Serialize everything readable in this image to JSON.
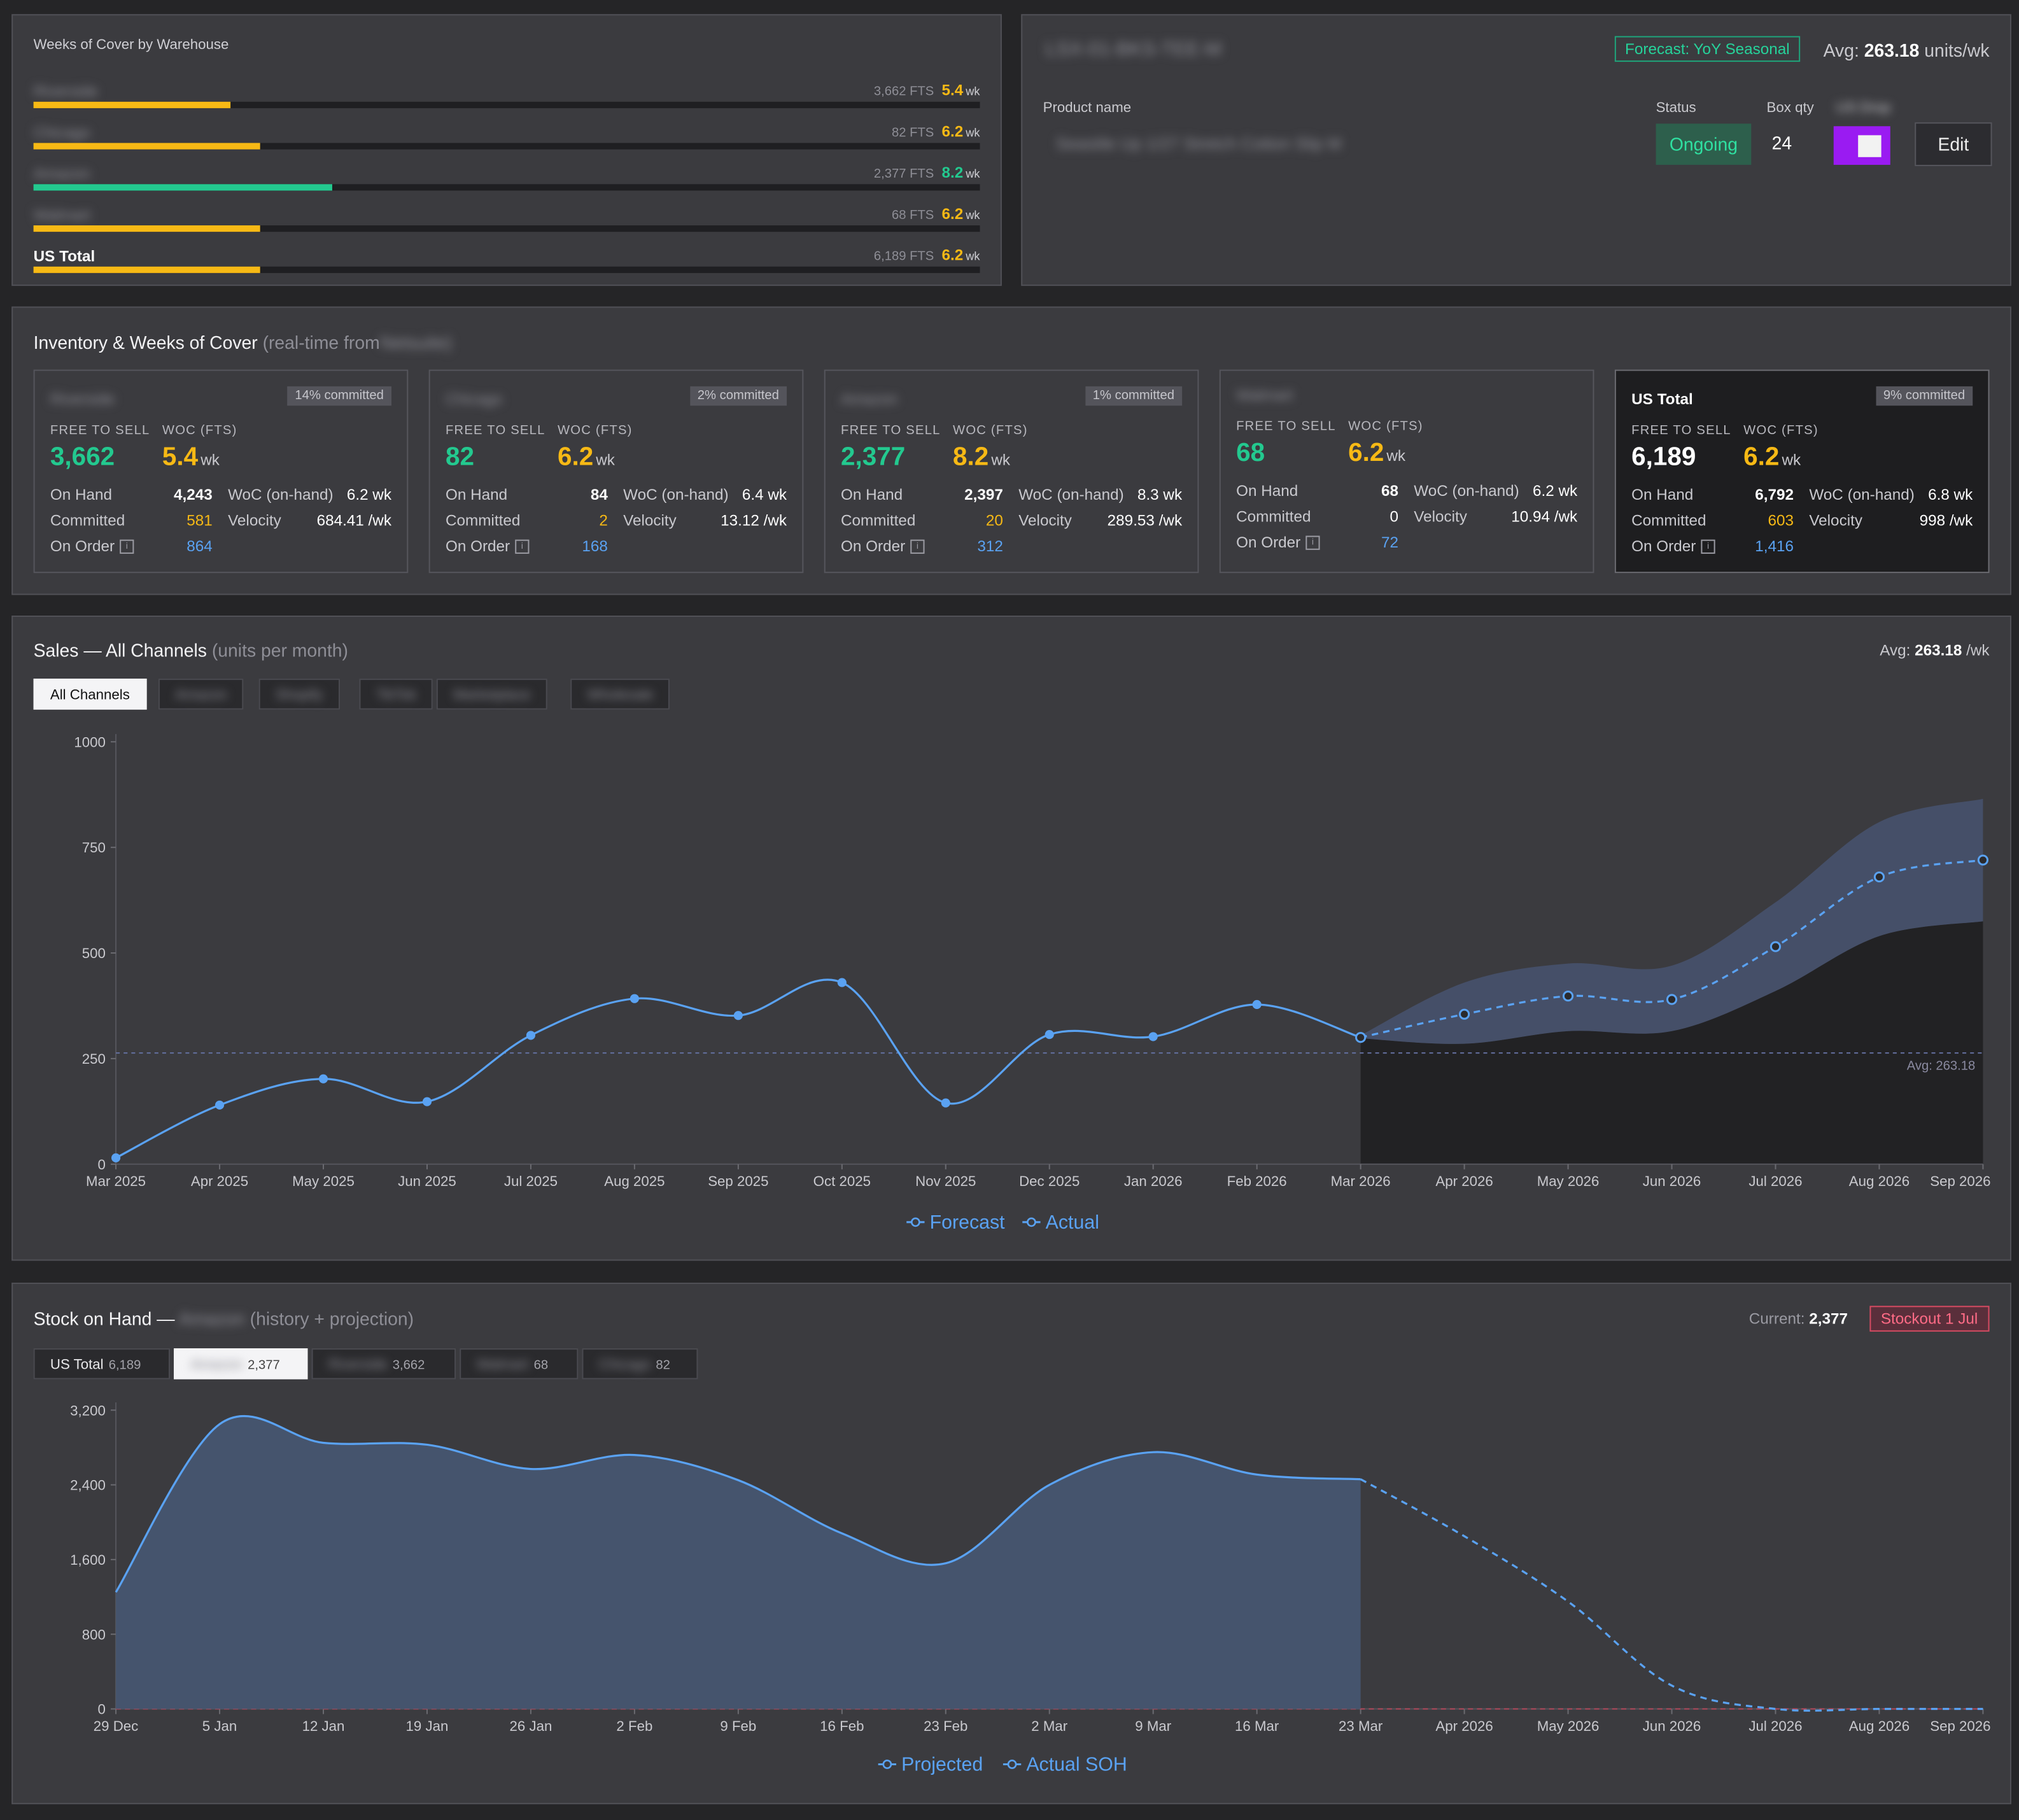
{
  "woc_panel": {
    "title": "Weeks of Cover by Warehouse",
    "rows": [
      {
        "name": "Riverside",
        "fts": "3,662 FTS",
        "woc": "5.4",
        "unit": "wk",
        "fill": 0.208,
        "color": "#f7b915",
        "blurred": true
      },
      {
        "name": "Chicago",
        "fts": "82 FTS",
        "woc": "6.2",
        "unit": "wk",
        "fill": 0.239,
        "color": "#f7b915",
        "blurred": true
      },
      {
        "name": "Amazon",
        "fts": "2,377 FTS",
        "woc": "8.2",
        "unit": "wk",
        "fill": 0.315,
        "color": "#23c98f",
        "blurred": true
      },
      {
        "name": "Walmart",
        "fts": "68 FTS",
        "woc": "6.2",
        "unit": "wk",
        "fill": 0.239,
        "color": "#f7b915",
        "blurred": true
      },
      {
        "name": "US Total",
        "fts": "6,189 FTS",
        "woc": "6.2",
        "unit": "wk",
        "fill": 0.239,
        "color": "#f7b915",
        "blurred": false
      }
    ]
  },
  "product": {
    "sku": "LSX-01-BKS-TEE-M",
    "forecast_tag": "Forecast: YoY Seasonal",
    "avg_label": "Avg:",
    "avg_value": "263.18",
    "avg_unit": "units/wk",
    "name_label": "Product name",
    "name_value": "Seastile Up 1/27 Stretch Cotton Slip M",
    "status_label": "Status",
    "status_value": "Ongoing",
    "box_qty_label": "Box qty",
    "box_qty_value": "24",
    "extra_label": "US Drop",
    "edit_label": "Edit"
  },
  "inventory": {
    "title": "Inventory & Weeks of Cover",
    "subtitle": "(real-time from",
    "subtitle_source": "Netsuite)",
    "fts_caption": "FREE TO SELL",
    "woc_caption": "WOC (FTS)",
    "on_hand_label": "On Hand",
    "committed_label": "Committed",
    "on_order_label": "On Order",
    "woc_onhand_label": "WoC (on-hand)",
    "velocity_label": "Velocity",
    "wk_unit": "wk",
    "cards": [
      {
        "name": "Riverside",
        "committed_pct": "14% committed",
        "fts": "3,662",
        "woc": "5.4",
        "on_hand": "4,243",
        "committed": "581",
        "on_order": "864",
        "woc_onhand": "6.2 wk",
        "velocity": "684.41 /wk"
      },
      {
        "name": "Chicago",
        "committed_pct": "2% committed",
        "fts": "82",
        "woc": "6.2",
        "on_hand": "84",
        "committed": "2",
        "on_order": "168",
        "woc_onhand": "6.4 wk",
        "velocity": "13.12 /wk"
      },
      {
        "name": "Amazon",
        "committed_pct": "1% committed",
        "fts": "2,377",
        "woc": "8.2",
        "on_hand": "2,397",
        "committed": "20",
        "on_order": "312",
        "woc_onhand": "8.3 wk",
        "velocity": "289.53 /wk"
      },
      {
        "name": "Walmart",
        "committed_pct": "",
        "fts": "68",
        "woc": "6.2",
        "on_hand": "68",
        "committed": "0",
        "on_order": "72",
        "woc_onhand": "6.2 wk",
        "velocity": "10.94 /wk"
      },
      {
        "name": "US Total",
        "committed_pct": "9% committed",
        "fts": "6,189",
        "woc": "6.2",
        "on_hand": "6,792",
        "committed": "603",
        "on_order": "1,416",
        "woc_onhand": "6.8 wk",
        "velocity": "998 /wk"
      }
    ]
  },
  "sales": {
    "title": "Sales — All Channels",
    "subtitle": "(units per month)",
    "avg_label": "Avg:",
    "avg_value": "263.18",
    "avg_unit": "/wk",
    "tabs": [
      "All Channels",
      "Amazon",
      "Shopify",
      "TikTok",
      "Marketplace",
      "Wholesale"
    ],
    "active_tab": 0
  },
  "stock": {
    "title": "Stock on Hand —",
    "title_location": "Amazon",
    "subtitle": "(history + projection)",
    "current_label": "Current:",
    "current_value": "2,377",
    "stockout_label": "Stockout 1 Jul",
    "tabs": [
      {
        "label": "US Total",
        "count": "6,189",
        "active": false,
        "blurred": false
      },
      {
        "label": "Amazon",
        "count": "2,377",
        "active": true,
        "blurred": true
      },
      {
        "label": "Riverside",
        "count": "3,662",
        "active": false,
        "blurred": true
      },
      {
        "label": "Walmart",
        "count": "68",
        "active": false,
        "blurred": true
      },
      {
        "label": "Chicago",
        "count": "82",
        "active": false,
        "blurred": true
      }
    ]
  },
  "chart_data": [
    {
      "type": "line",
      "title": "Sales — All Channels",
      "categories": [
        "Mar 2025",
        "Apr 2025",
        "May 2025",
        "Jun 2025",
        "Jul 2025",
        "Aug 2025",
        "Sep 2025",
        "Oct 2025",
        "Nov 2025",
        "Dec 2025",
        "Jan 2026",
        "Feb 2026",
        "Mar 2026",
        "Apr 2026",
        "May 2026",
        "Jun 2026",
        "Jul 2026",
        "Aug 2026",
        "Sep 2026"
      ],
      "ylim": [
        0,
        1000
      ],
      "yticks": [
        0,
        250,
        500,
        750,
        1000
      ],
      "series": [
        {
          "name": "Actual",
          "color": "#5aa2f2",
          "values": [
            15,
            140,
            202,
            148,
            305,
            392,
            352,
            430,
            145,
            307,
            302,
            378,
            300,
            null,
            null,
            null,
            null,
            null,
            null
          ]
        },
        {
          "name": "Forecast",
          "color": "#5aa2f2",
          "dashed": true,
          "values": [
            null,
            null,
            null,
            null,
            null,
            null,
            null,
            null,
            null,
            null,
            null,
            null,
            300,
            355,
            398,
            390,
            515,
            680,
            720
          ]
        }
      ],
      "band_upper": [
        null,
        null,
        null,
        null,
        null,
        null,
        null,
        null,
        null,
        null,
        null,
        null,
        305,
        430,
        475,
        470,
        620,
        810,
        865
      ],
      "band_lower": [
        null,
        null,
        null,
        null,
        null,
        null,
        null,
        null,
        null,
        null,
        null,
        null,
        298,
        285,
        315,
        315,
        410,
        540,
        575
      ],
      "reference_line": {
        "value": 263.18,
        "label": "Avg: 263.18"
      },
      "legend": [
        "Forecast",
        "Actual"
      ],
      "legend_position": "bottom"
    },
    {
      "type": "area",
      "title": "Stock on Hand",
      "categories": [
        "29 Dec",
        "5 Jan",
        "12 Jan",
        "19 Jan",
        "26 Jan",
        "2 Feb",
        "9 Feb",
        "16 Feb",
        "23 Feb",
        "2 Mar",
        "9 Mar",
        "16 Mar",
        "23 Mar",
        "Apr 2026",
        "May 2026",
        "Jun 2026",
        "Jul 2026",
        "Aug 2026",
        "Sep 2026"
      ],
      "ylim": [
        0,
        3200
      ],
      "yticks": [
        0,
        800,
        1600,
        2400,
        3200
      ],
      "ytick_labels": [
        "0",
        "800",
        "1,600",
        "2,400",
        "3,200"
      ],
      "series": [
        {
          "name": "Actual SOH",
          "color": "#5aa2f2",
          "values": [
            1250,
            3050,
            2850,
            2830,
            2570,
            2720,
            2450,
            1880,
            1560,
            2400,
            2750,
            2510,
            2460,
            null,
            null,
            null,
            null,
            null,
            null
          ]
        },
        {
          "name": "Projected",
          "color": "#5aa2f2",
          "dashed": true,
          "values": [
            null,
            null,
            null,
            null,
            null,
            null,
            null,
            null,
            null,
            null,
            null,
            null,
            2460,
            1850,
            1150,
            250,
            0,
            0,
            0
          ]
        }
      ],
      "legend": [
        "Projected",
        "Actual SOH"
      ],
      "legend_position": "bottom"
    }
  ]
}
